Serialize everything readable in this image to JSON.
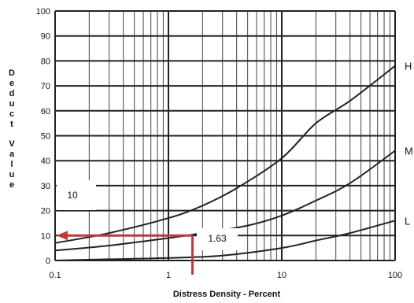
{
  "chart_data": {
    "type": "line",
    "title": "",
    "xlabel": "Distress Density - Percent",
    "ylabel": "Deduct Value",
    "x_scale": "log",
    "xlim": [
      0.1,
      100
    ],
    "ylim": [
      0,
      100
    ],
    "grid": true,
    "x_ticks": [
      "0.1",
      "1",
      "10",
      "100"
    ],
    "y_ticks": [
      "0",
      "10",
      "20",
      "30",
      "40",
      "50",
      "60",
      "70",
      "80",
      "90",
      "100"
    ],
    "series": [
      {
        "name": "H",
        "x": [
          0.1,
          0.3,
          1,
          2,
          4,
          10,
          20,
          40,
          100
        ],
        "y": [
          7,
          11,
          17,
          22,
          29,
          41,
          55,
          64,
          78
        ]
      },
      {
        "name": "M",
        "x": [
          0.1,
          0.3,
          1,
          2,
          5,
          10,
          20,
          40,
          100
        ],
        "y": [
          4,
          6,
          9,
          11,
          14,
          18,
          24,
          31,
          44
        ]
      },
      {
        "name": "L",
        "x": [
          0.1,
          0.3,
          1,
          3,
          10,
          20,
          40,
          100
        ],
        "y": [
          0,
          0.5,
          1,
          2,
          5,
          8,
          11,
          16
        ]
      }
    ],
    "annotations": [
      {
        "id": "box-value",
        "text": "10"
      },
      {
        "id": "density-value",
        "text": "1.63"
      }
    ],
    "reading": {
      "x": 1.63,
      "y": 10,
      "color": "#c0393b"
    }
  }
}
